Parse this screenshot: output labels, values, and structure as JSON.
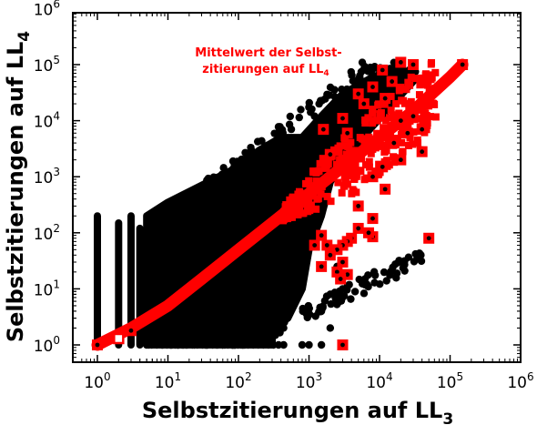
{
  "chart_data": {
    "type": "scatter",
    "xscale": "log",
    "yscale": "log",
    "xlim": [
      0.5,
      1000000
    ],
    "ylim": [
      0.5,
      1000000
    ],
    "xlabel": {
      "main": "Selbstzitierungen auf LL",
      "sub": "3"
    },
    "ylabel": {
      "main": "Selbstzitierungen auf LL",
      "sub": "4"
    },
    "annotation": {
      "line1": "Mittelwert der Selbst-",
      "line2": "zitierungen auf LL",
      "sub": "4"
    },
    "tick_labels": {
      "x": [
        {
          "value": 1,
          "base": "10",
          "exp": "0"
        },
        {
          "value": 10,
          "base": "10",
          "exp": "1"
        },
        {
          "value": 100,
          "base": "10",
          "exp": "2"
        },
        {
          "value": 1000,
          "base": "10",
          "exp": "3"
        },
        {
          "value": 10000,
          "base": "10",
          "exp": "4"
        },
        {
          "value": 100000,
          "base": "10",
          "exp": "5"
        },
        {
          "value": 1000000,
          "base": "10",
          "exp": "6"
        }
      ],
      "y": [
        {
          "value": 1,
          "base": "10",
          "exp": "0"
        },
        {
          "value": 10,
          "base": "10",
          "exp": "1"
        },
        {
          "value": 100,
          "base": "10",
          "exp": "2"
        },
        {
          "value": 1000,
          "base": "10",
          "exp": "3"
        },
        {
          "value": 10000,
          "base": "10",
          "exp": "4"
        },
        {
          "value": 100000,
          "base": "10",
          "exp": "5"
        },
        {
          "value": 1000000,
          "base": "10",
          "exp": "6"
        }
      ]
    },
    "series": [
      {
        "marker": "circle",
        "color": "#000000",
        "description_of_cloud": "individual points"
      },
      {
        "marker": "square",
        "color": "#ff0000",
        "description_of_cloud": "mean values"
      }
    ],
    "black_columns": [
      {
        "x": 1,
        "ymin": 1,
        "ymax": 200
      },
      {
        "x": 2,
        "ymin": 1,
        "ymax": 150
      },
      {
        "x": 3,
        "ymin": 1,
        "ymax": 200
      },
      {
        "x": 4,
        "ymin": 1,
        "ymax": 120
      }
    ],
    "black_cloud_outline": [
      [
        5,
        1
      ],
      [
        5,
        200
      ],
      [
        10,
        350
      ],
      [
        30,
        700
      ],
      [
        100,
        1500
      ],
      [
        200,
        3000
      ],
      [
        400,
        5000
      ],
      [
        800,
        5000
      ],
      [
        1500,
        12000
      ],
      [
        3000,
        30000
      ],
      [
        8000,
        60000
      ],
      [
        20000,
        90000
      ],
      [
        30000,
        50000
      ],
      [
        8000,
        8000
      ],
      [
        3000,
        2000
      ],
      [
        2000,
        800
      ],
      [
        1500,
        200
      ],
      [
        1000,
        50
      ],
      [
        800,
        10
      ],
      [
        500,
        3
      ],
      [
        300,
        2
      ],
      [
        300,
        1
      ]
    ],
    "black_outliers": [
      [
        3000,
        1
      ],
      [
        800,
        1
      ],
      [
        1000,
        1
      ],
      [
        1500,
        1
      ],
      [
        2000,
        2
      ],
      [
        1500,
        4
      ],
      [
        2000,
        8
      ],
      [
        3000,
        10
      ],
      [
        2500,
        25
      ],
      [
        1200,
        12000
      ],
      [
        1500,
        4000
      ],
      [
        1500,
        6000
      ],
      [
        40000,
        3000
      ]
    ],
    "red_band": [
      [
        1,
        1
      ],
      [
        3,
        2
      ],
      [
        10,
        5
      ],
      [
        30,
        15
      ],
      [
        100,
        50
      ],
      [
        300,
        150
      ],
      [
        1000,
        500
      ],
      [
        3000,
        1500
      ],
      [
        10000,
        5000
      ],
      [
        30000,
        15000
      ],
      [
        100000,
        60000
      ],
      [
        150000,
        100000
      ]
    ],
    "red_squares": [
      [
        1,
        1
      ],
      [
        2,
        1.3
      ],
      [
        3,
        1.8
      ],
      [
        150000,
        100000
      ],
      [
        50000,
        80
      ],
      [
        3000,
        1
      ],
      [
        40000,
        2800
      ],
      [
        20000,
        110000
      ],
      [
        30000,
        100000
      ],
      [
        11000,
        80000
      ],
      [
        8000,
        40000
      ],
      [
        5000,
        30000
      ],
      [
        15000,
        50000
      ],
      [
        12000,
        25000
      ],
      [
        6000,
        20000
      ],
      [
        3000,
        11000
      ],
      [
        20000,
        10000
      ],
      [
        30000,
        12000
      ],
      [
        40000,
        7000
      ],
      [
        25000,
        6000
      ],
      [
        16000,
        4000
      ],
      [
        20000,
        2000
      ],
      [
        11000,
        1500
      ],
      [
        8000,
        1000
      ],
      [
        12000,
        600
      ],
      [
        5000,
        300
      ],
      [
        8000,
        180
      ],
      [
        8000,
        85
      ],
      [
        7000,
        100
      ],
      [
        5000,
        120
      ],
      [
        4000,
        80
      ],
      [
        3500,
        70
      ],
      [
        3000,
        60
      ],
      [
        2500,
        50
      ],
      [
        2000,
        40
      ],
      [
        3000,
        30
      ],
      [
        2500,
        20
      ],
      [
        3500,
        18
      ],
      [
        2800,
        15
      ],
      [
        1500,
        25
      ],
      [
        1800,
        60
      ],
      [
        1200,
        60
      ],
      [
        1500,
        90
      ],
      [
        1600,
        7000
      ],
      [
        3500,
        6000
      ],
      [
        2000,
        2500
      ]
    ]
  }
}
